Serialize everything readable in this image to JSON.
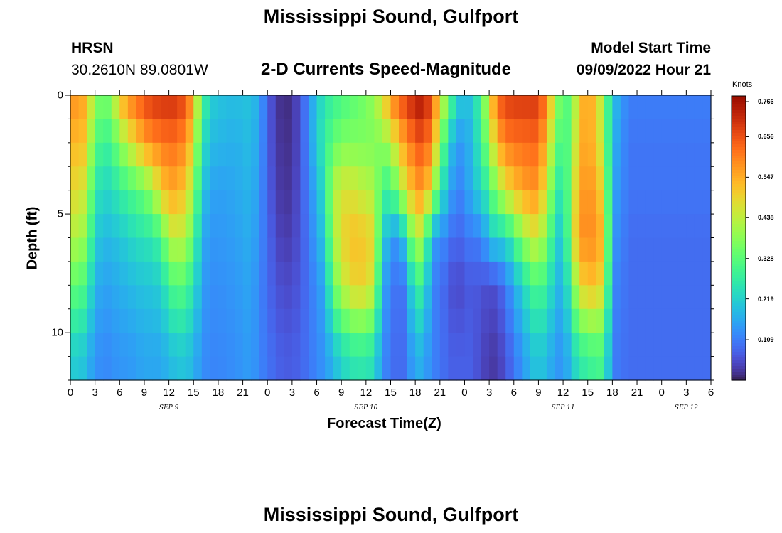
{
  "header": {
    "title": "Mississippi Sound, Gulfport",
    "station_code": "HRSN",
    "coordinates": "30.2610N  89.0801W",
    "chart_subtitle": "2-D Currents Speed-Magnitude",
    "model_start_label": "Model Start Time",
    "model_start_value": "09/09/2022 Hour 21"
  },
  "footer": {
    "title": "Mississippi Sound, Gulfport"
  },
  "chart_data": {
    "type": "heatmap",
    "title": "2-D Currents Speed-Magnitude",
    "xlabel": "Forecast Time(Z)",
    "ylabel": "Depth (ft)",
    "x_hours_start": 0,
    "x_hours_end": 78,
    "x_step_hours": 1,
    "x_tick_labels": [
      "0",
      "3",
      "6",
      "9",
      "12",
      "15",
      "18",
      "21",
      "0",
      "3",
      "6",
      "9",
      "12",
      "15",
      "18",
      "21",
      "0",
      "3",
      "6",
      "9",
      "12",
      "15",
      "18",
      "21",
      "0",
      "3",
      "6"
    ],
    "day_labels": [
      {
        "text": "SEP 9",
        "hour": 12
      },
      {
        "text": "SEP 10",
        "hour": 36
      },
      {
        "text": "SEP 11",
        "hour": 60
      },
      {
        "text": "SEP 12",
        "hour": 75
      }
    ],
    "ylim": [
      0,
      12
    ],
    "y_ticks": [
      0,
      5,
      10
    ],
    "depth_rows": 12,
    "color_scale": {
      "unit": "Knots",
      "min": 0.0,
      "max": 0.766,
      "tick_values": [
        0.766,
        0.656,
        0.547,
        0.438,
        0.328,
        0.219,
        0.109
      ],
      "tick_labels": [
        "0.766",
        "0.656",
        "0.547",
        "0.438",
        "0.328",
        "0.219",
        "0.109"
      ],
      "colormap": "turbo"
    },
    "profiles": {
      "H": [
        [
          0,
          0.56,
          0.5,
          0.46,
          0.4,
          0.32,
          0.2
        ],
        [
          1,
          0.6,
          0.56,
          0.5,
          0.44,
          0.35,
          0.22
        ],
        [
          2,
          0.52,
          0.48,
          0.42,
          0.36,
          0.28,
          0.18
        ],
        [
          3,
          0.4,
          0.33,
          0.27,
          0.22,
          0.18,
          0.14
        ],
        [
          4,
          0.34,
          0.28,
          0.22,
          0.18,
          0.15,
          0.12
        ],
        [
          5,
          0.4,
          0.3,
          0.24,
          0.19,
          0.16,
          0.13
        ],
        [
          6,
          0.52,
          0.38,
          0.27,
          0.2,
          0.17,
          0.14
        ],
        [
          7,
          0.6,
          0.44,
          0.3,
          0.22,
          0.18,
          0.14
        ],
        [
          8,
          0.63,
          0.5,
          0.32,
          0.24,
          0.19,
          0.15
        ],
        [
          9,
          0.67,
          0.56,
          0.35,
          0.25,
          0.2,
          0.16
        ],
        [
          10,
          0.69,
          0.59,
          0.4,
          0.26,
          0.2,
          0.16
        ],
        [
          11,
          0.7,
          0.61,
          0.5,
          0.3,
          0.22,
          0.16
        ],
        [
          12,
          0.7,
          0.62,
          0.55,
          0.42,
          0.28,
          0.18
        ],
        [
          13,
          0.7,
          0.62,
          0.55,
          0.45,
          0.34,
          0.2
        ],
        [
          14,
          0.66,
          0.58,
          0.5,
          0.42,
          0.3,
          0.2
        ],
        [
          15,
          0.56,
          0.48,
          0.4,
          0.33,
          0.26,
          0.18
        ],
        [
          16,
          0.32,
          0.26,
          0.21,
          0.17,
          0.15,
          0.13
        ],
        [
          17,
          0.22,
          0.19,
          0.16,
          0.14,
          0.13,
          0.12
        ],
        [
          18,
          0.2,
          0.18,
          0.15,
          0.14,
          0.13,
          0.12
        ],
        [
          20,
          0.19,
          0.17,
          0.16,
          0.15,
          0.14,
          0.13
        ],
        [
          22,
          0.2,
          0.19,
          0.18,
          0.17,
          0.16,
          0.15
        ],
        [
          23,
          0.16,
          0.15,
          0.14,
          0.13,
          0.12,
          0.12
        ],
        [
          24,
          0.08,
          0.08,
          0.08,
          0.09,
          0.09,
          0.1
        ],
        [
          25,
          0.03,
          0.03,
          0.04,
          0.05,
          0.06,
          0.08
        ],
        [
          26,
          0.01,
          0.02,
          0.02,
          0.03,
          0.05,
          0.07
        ],
        [
          27,
          0.02,
          0.02,
          0.03,
          0.04,
          0.05,
          0.07
        ],
        [
          28,
          0.06,
          0.06,
          0.06,
          0.06,
          0.07,
          0.08
        ],
        [
          29,
          0.13,
          0.13,
          0.12,
          0.11,
          0.1,
          0.1
        ],
        [
          30,
          0.2,
          0.21,
          0.17,
          0.15,
          0.13,
          0.12
        ],
        [
          31,
          0.26,
          0.28,
          0.26,
          0.22,
          0.17,
          0.14
        ],
        [
          32,
          0.28,
          0.33,
          0.42,
          0.4,
          0.34,
          0.18
        ],
        [
          33,
          0.3,
          0.37,
          0.46,
          0.48,
          0.42,
          0.22
        ],
        [
          34,
          0.32,
          0.37,
          0.47,
          0.52,
          0.48,
          0.25
        ],
        [
          35,
          0.34,
          0.37,
          0.45,
          0.52,
          0.5,
          0.26
        ],
        [
          36,
          0.36,
          0.37,
          0.43,
          0.51,
          0.49,
          0.26
        ],
        [
          37,
          0.4,
          0.37,
          0.42,
          0.48,
          0.44,
          0.24
        ],
        [
          38,
          0.48,
          0.38,
          0.3,
          0.22,
          0.16,
          0.13
        ],
        [
          39,
          0.58,
          0.42,
          0.28,
          0.16,
          0.12,
          0.1
        ],
        [
          40,
          0.66,
          0.52,
          0.4,
          0.12,
          0.08,
          0.08
        ],
        [
          41,
          0.68,
          0.58,
          0.48,
          0.26,
          0.12,
          0.1
        ],
        [
          42,
          0.74,
          0.64,
          0.56,
          0.44,
          0.3,
          0.18
        ],
        [
          43,
          0.74,
          0.66,
          0.58,
          0.4,
          0.26,
          0.16
        ],
        [
          44,
          0.66,
          0.58,
          0.46,
          0.14,
          0.12,
          0.12
        ],
        [
          45,
          0.5,
          0.4,
          0.28,
          0.14,
          0.1,
          0.1
        ],
        [
          46,
          0.36,
          0.22,
          0.17,
          0.1,
          0.07,
          0.08
        ],
        [
          47,
          0.24,
          0.15,
          0.12,
          0.08,
          0.04,
          0.07
        ],
        [
          48,
          0.18,
          0.14,
          0.12,
          0.09,
          0.06,
          0.08
        ],
        [
          49,
          0.22,
          0.2,
          0.2,
          0.12,
          0.07,
          0.07
        ],
        [
          50,
          0.3,
          0.28,
          0.22,
          0.1,
          0.06,
          0.05
        ],
        [
          51,
          0.48,
          0.4,
          0.3,
          0.2,
          0.05,
          0.03
        ],
        [
          52,
          0.64,
          0.54,
          0.4,
          0.22,
          0.06,
          0.03
        ],
        [
          53,
          0.68,
          0.6,
          0.46,
          0.22,
          0.1,
          0.06
        ],
        [
          54,
          0.69,
          0.62,
          0.52,
          0.3,
          0.16,
          0.1
        ],
        [
          55,
          0.69,
          0.62,
          0.55,
          0.38,
          0.22,
          0.14
        ],
        [
          56,
          0.69,
          0.63,
          0.58,
          0.44,
          0.28,
          0.18
        ],
        [
          57,
          0.69,
          0.63,
          0.57,
          0.46,
          0.32,
          0.21
        ],
        [
          58,
          0.6,
          0.52,
          0.44,
          0.36,
          0.27,
          0.18
        ],
        [
          59,
          0.42,
          0.36,
          0.3,
          0.24,
          0.2,
          0.15
        ],
        [
          60,
          0.32,
          0.28,
          0.23,
          0.18,
          0.16,
          0.13
        ],
        [
          61,
          0.33,
          0.36,
          0.4,
          0.42,
          0.32,
          0.2
        ],
        [
          62,
          0.52,
          0.54,
          0.56,
          0.58,
          0.48,
          0.26
        ],
        [
          63,
          0.56,
          0.56,
          0.58,
          0.59,
          0.52,
          0.28
        ],
        [
          64,
          0.52,
          0.52,
          0.56,
          0.58,
          0.52,
          0.3
        ],
        [
          65,
          0.38,
          0.4,
          0.46,
          0.52,
          0.46,
          0.3
        ],
        [
          66,
          0.2,
          0.18,
          0.16,
          0.14,
          0.12,
          0.11
        ],
        [
          67,
          0.15,
          0.14,
          0.13,
          0.12,
          0.11,
          0.1
        ],
        [
          68,
          0.11,
          0.1,
          0.1,
          0.09,
          0.09,
          0.09
        ]
      ]
    }
  }
}
